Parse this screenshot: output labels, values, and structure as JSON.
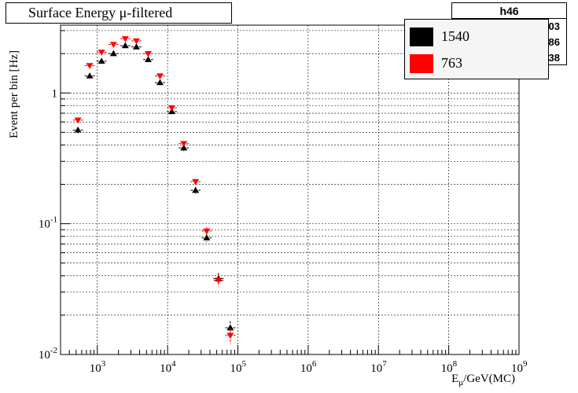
{
  "title": "Surface Energy μ-filtered",
  "stats": {
    "name": "h46",
    "visible_fragments": [
      "03",
      "86",
      "38"
    ]
  },
  "legend": [
    {
      "label": "1540",
      "color": "#000000"
    },
    {
      "label": "763",
      "color": "#ff0000"
    }
  ],
  "chart_data": {
    "type": "scatter",
    "xlabel": "E_μ/GeV(MC)",
    "ylabel": "Event per bin [Hz]",
    "xscale": "log",
    "yscale": "log",
    "xlim": [
      300,
      1000000000
    ],
    "ylim": [
      0.01,
      3.3
    ],
    "x_ticks": [
      {
        "value": 1000,
        "base": "10",
        "exp": "3"
      },
      {
        "value": 10000,
        "base": "10",
        "exp": "4"
      },
      {
        "value": 100000,
        "base": "10",
        "exp": "5"
      },
      {
        "value": 1000000,
        "base": "10",
        "exp": "6"
      },
      {
        "value": 10000000,
        "base": "10",
        "exp": "7"
      },
      {
        "value": 100000000,
        "base": "10",
        "exp": "8"
      },
      {
        "value": 1000000000,
        "base": "10",
        "exp": "9"
      }
    ],
    "y_ticks": [
      {
        "value": 0.01,
        "base": "10",
        "exp": "-2"
      },
      {
        "value": 0.1,
        "base": "10",
        "exp": "-1"
      },
      {
        "value": 1,
        "base": "1",
        "exp": ""
      }
    ],
    "grid": true,
    "legend_position": "top-right",
    "series": [
      {
        "name": "1540",
        "color": "#000000",
        "marker": "triangle-up",
        "x": [
          530,
          780,
          1150,
          1700,
          2500,
          3600,
          5300,
          7800,
          11500,
          17000,
          25000,
          36000,
          53000,
          78000
        ],
        "y": [
          0.52,
          1.35,
          1.75,
          2.0,
          2.3,
          2.25,
          1.8,
          1.2,
          0.72,
          0.38,
          0.18,
          0.078,
          0.038,
          0.016
        ],
        "err": [
          0.03,
          0.05,
          0.06,
          0.06,
          0.07,
          0.07,
          0.06,
          0.05,
          0.03,
          0.02,
          0.01,
          0.006,
          0.004,
          0.002
        ]
      },
      {
        "name": "763",
        "color": "#ff0000",
        "marker": "triangle-down",
        "x": [
          530,
          780,
          1150,
          1700,
          2500,
          3600,
          5300,
          7800,
          11500,
          17000,
          25000,
          36000,
          53000,
          78000
        ],
        "y": [
          0.62,
          1.62,
          2.05,
          2.35,
          2.6,
          2.5,
          2.0,
          1.35,
          0.77,
          0.41,
          0.21,
          0.088,
          0.037,
          0.014
        ],
        "err": [
          0.03,
          0.05,
          0.06,
          0.07,
          0.08,
          0.08,
          0.07,
          0.05,
          0.03,
          0.02,
          0.01,
          0.006,
          0.004,
          0.002
        ]
      }
    ]
  }
}
